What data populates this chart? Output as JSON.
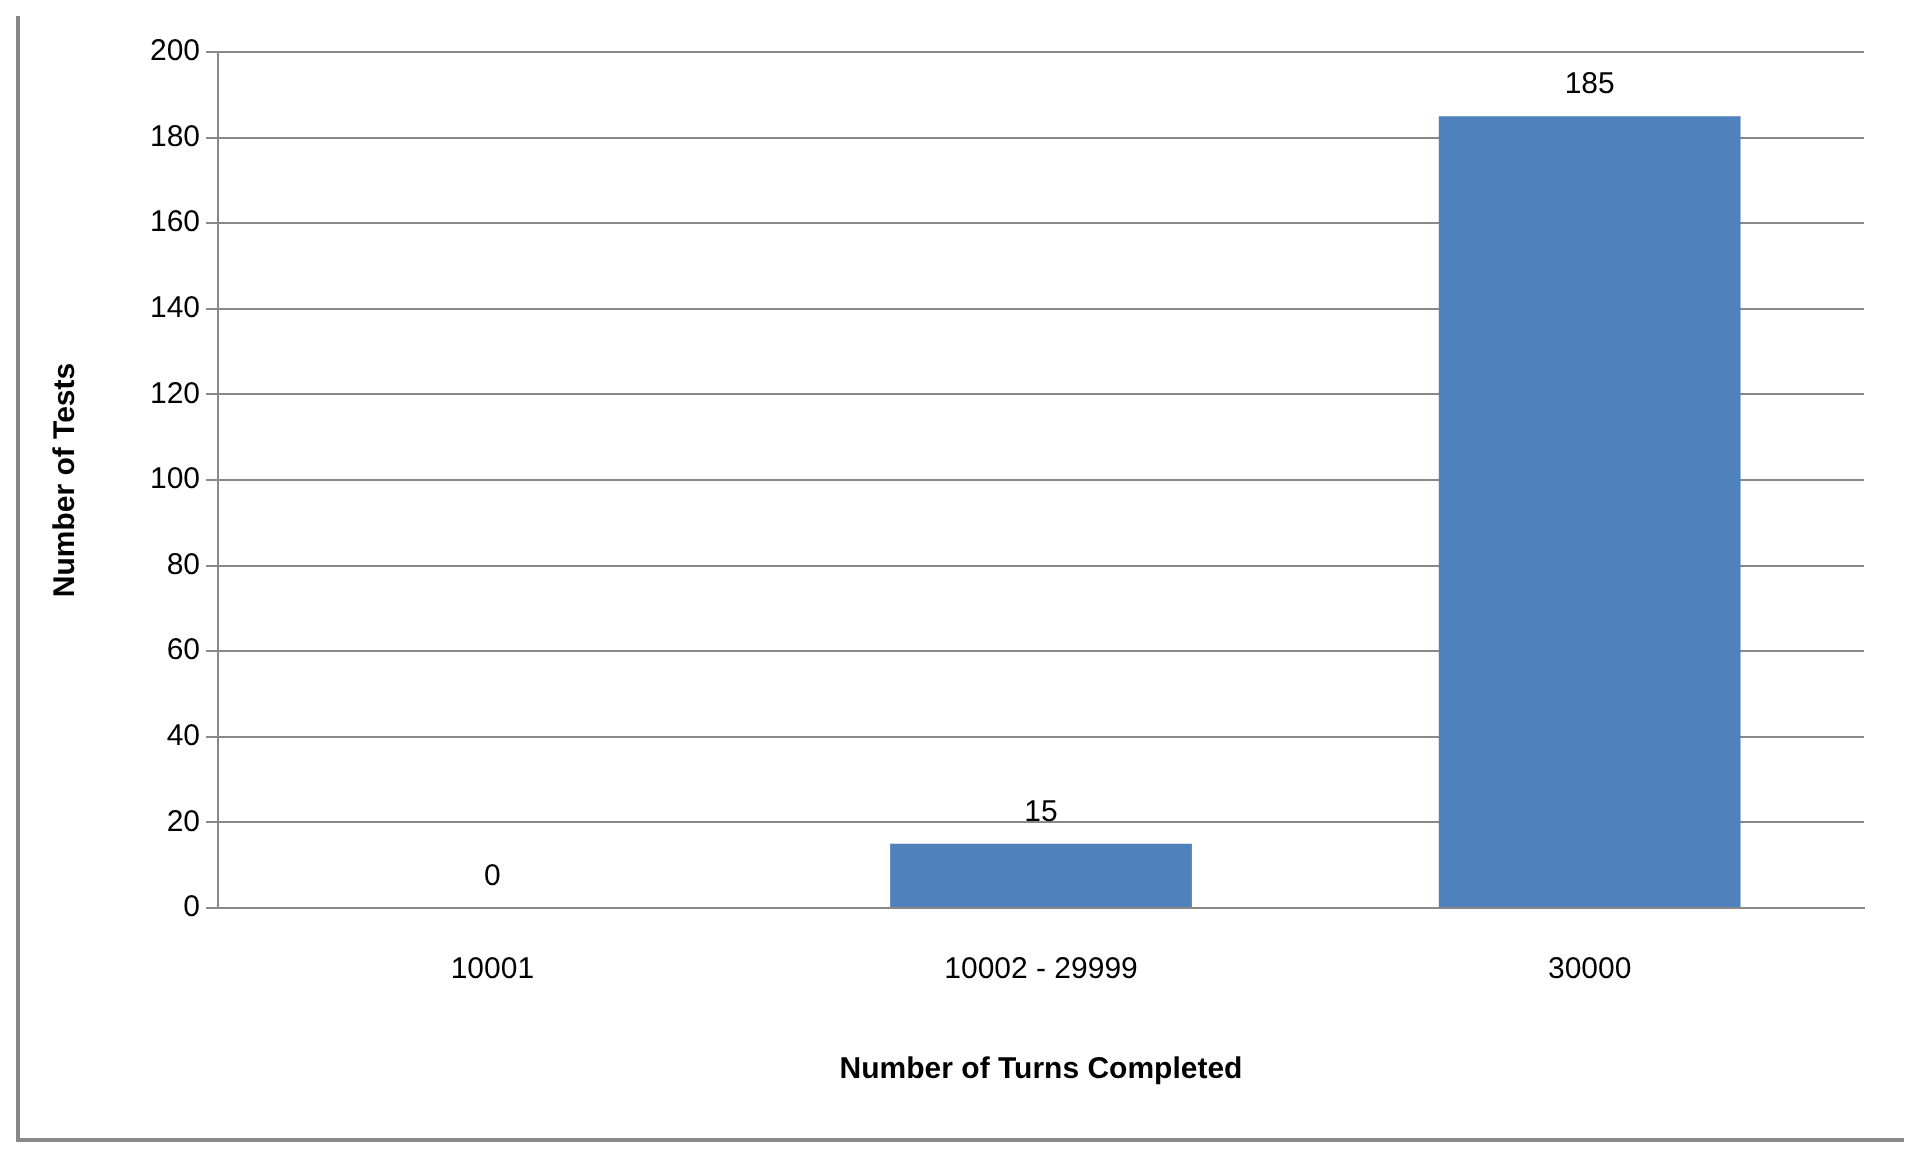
{
  "chart_data": {
    "type": "bar",
    "xlabel": "Number of Turns Completed",
    "ylabel": "Number of Tests",
    "categories": [
      "10001",
      "10002 - 29999",
      "30000"
    ],
    "values": [
      0,
      15,
      185
    ],
    "color": "#4f81bd",
    "ylim": [
      0,
      200
    ],
    "yticks": [
      0,
      20,
      40,
      60,
      80,
      100,
      120,
      140,
      160,
      180,
      200
    ],
    "grid": "y",
    "data_labels": true,
    "legend": false
  }
}
